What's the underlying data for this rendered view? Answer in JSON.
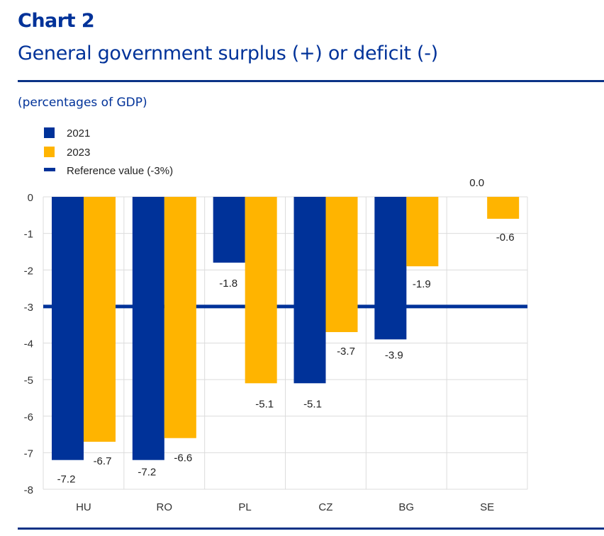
{
  "header": {
    "chart_number": "Chart 2",
    "title": "General government surplus (+) or deficit (-)",
    "subtitle": "(percentages of GDP)"
  },
  "colors": {
    "2021": "#003299",
    "2023": "#FFB400",
    "reference": "#003299",
    "heading": "#003299"
  },
  "chart_data": {
    "type": "bar",
    "title": "General government surplus (+) or deficit (-)",
    "subtitle": "(percentages of GDP)",
    "xlabel": "",
    "ylabel": "",
    "categories": [
      "HU",
      "RO",
      "PL",
      "CZ",
      "BG",
      "SE"
    ],
    "series": [
      {
        "name": "2021",
        "color": "#003299",
        "values": [
          -7.2,
          -7.2,
          -1.8,
          -5.1,
          -3.9,
          0.0
        ],
        "labels": [
          "-7.2",
          "-7.2",
          "-1.8",
          "-5.1",
          "-3.9",
          "0.0"
        ]
      },
      {
        "name": "2023",
        "color": "#FFB400",
        "values": [
          -6.7,
          -6.6,
          -5.1,
          -3.7,
          -1.9,
          -0.6
        ],
        "labels": [
          "-6.7",
          "-6.6",
          "-5.1",
          "-3.7",
          "-1.9",
          "-0.6"
        ]
      }
    ],
    "reference_line": {
      "name": "Reference value (-3%)",
      "value": -3,
      "color": "#003299"
    },
    "ylim": [
      -8,
      0
    ],
    "yticks": [
      0,
      -1,
      -2,
      -3,
      -4,
      -5,
      -6,
      -7,
      -8
    ],
    "ytick_labels": [
      "0",
      "-1",
      "-2",
      "-3",
      "-4",
      "-5",
      "-6",
      "-7",
      "-8"
    ],
    "grid": true,
    "legend": {
      "position": "top-left",
      "entries": [
        "2021",
        "2023",
        "Reference value (-3%)"
      ]
    }
  }
}
